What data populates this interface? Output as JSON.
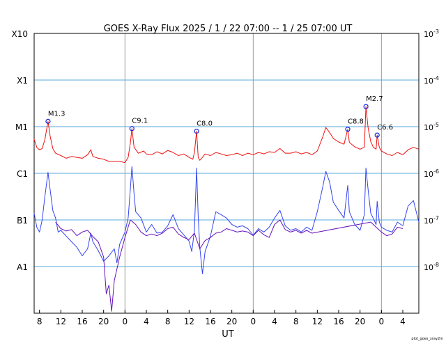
{
  "chart_data": {
    "type": "line",
    "title": "GOES X-Ray Flux   2025  /  1 / 22   07:00 --  1 / 25   07:00   UT",
    "xlabel": "UT",
    "footer": "plot_goes_xray2m",
    "x_range_hours": [
      0,
      72
    ],
    "x_tick_labels": [
      "8",
      "12",
      "16",
      "20",
      "0",
      "4",
      "8",
      "12",
      "16",
      "20",
      "0",
      "4",
      "8",
      "12",
      "16",
      "20",
      "0",
      "4"
    ],
    "x_tick_hours": [
      1,
      5,
      9,
      13,
      17,
      21,
      25,
      29,
      33,
      37,
      41,
      45,
      49,
      53,
      57,
      61,
      65,
      69
    ],
    "day_boundaries_hours": [
      17,
      41,
      65
    ],
    "y_scale": "log",
    "y_range": [
      1e-09,
      0.001
    ],
    "y_left_labels": [
      {
        "label": "X10",
        "value": 0.001
      },
      {
        "label": "X1",
        "value": 0.0001
      },
      {
        "label": "M1",
        "value": 1e-05
      },
      {
        "label": "C1",
        "value": 1e-06
      },
      {
        "label": "B1",
        "value": 1e-07
      },
      {
        "label": "A1",
        "value": 1e-08
      }
    ],
    "y_right_labels": [
      {
        "base": "10",
        "exp": "-3",
        "value": 0.001
      },
      {
        "base": "10",
        "exp": "-4",
        "value": 0.0001
      },
      {
        "base": "10",
        "exp": "-5",
        "value": 1e-05
      },
      {
        "base": "10",
        "exp": "-6",
        "value": 1e-06
      },
      {
        "base": "10",
        "exp": "-7",
        "value": 1e-07
      },
      {
        "base": "10",
        "exp": "-8",
        "value": 1e-08
      }
    ],
    "flares": [
      {
        "label": "M1.3",
        "hour": 2.6,
        "flux": 1.3e-05
      },
      {
        "label": "C9.1",
        "hour": 18.3,
        "flux": 9.1e-06
      },
      {
        "label": "C8.0",
        "hour": 30.4,
        "flux": 8e-06
      },
      {
        "label": "C8.8",
        "hour": 58.7,
        "flux": 8.8e-06
      },
      {
        "label": "M2.7",
        "hour": 62.1,
        "flux": 2.7e-05
      },
      {
        "label": "C6.6",
        "hour": 64.2,
        "flux": 6.6e-06
      }
    ],
    "series": [
      {
        "color": "#ee1111",
        "points": [
          [
            0,
            5.4e-06
          ],
          [
            0.5,
            3.6e-06
          ],
          [
            1,
            3.2e-06
          ],
          [
            1.5,
            3.4e-06
          ],
          [
            2,
            5.2e-06
          ],
          [
            2.6,
            1.3e-05
          ],
          [
            3,
            6.2e-06
          ],
          [
            3.5,
            3.4e-06
          ],
          [
            4,
            2.7e-06
          ],
          [
            5,
            2.4e-06
          ],
          [
            6,
            2.1e-06
          ],
          [
            7,
            2.3e-06
          ],
          [
            8,
            2.2e-06
          ],
          [
            9,
            2.1e-06
          ],
          [
            10,
            2.5e-06
          ],
          [
            10.6,
            3.2e-06
          ],
          [
            11,
            2.3e-06
          ],
          [
            12,
            2.1e-06
          ],
          [
            13,
            2e-06
          ],
          [
            14,
            1.8e-06
          ],
          [
            15,
            1.8e-06
          ],
          [
            16,
            1.8e-06
          ],
          [
            17,
            1.7e-06
          ],
          [
            17.6,
            2.2e-06
          ],
          [
            18,
            4.4e-06
          ],
          [
            18.3,
            9.1e-06
          ],
          [
            18.7,
            3.6e-06
          ],
          [
            19.5,
            2.7e-06
          ],
          [
            20.5,
            3e-06
          ],
          [
            21,
            2.6e-06
          ],
          [
            22,
            2.5e-06
          ],
          [
            23,
            2.9e-06
          ],
          [
            24,
            2.6e-06
          ],
          [
            25,
            3.1e-06
          ],
          [
            26,
            2.8e-06
          ],
          [
            27,
            2.4e-06
          ],
          [
            28,
            2.6e-06
          ],
          [
            29,
            2.2e-06
          ],
          [
            29.7,
            2e-06
          ],
          [
            30,
            2.8e-06
          ],
          [
            30.4,
            8e-06
          ],
          [
            30.7,
            2.2e-06
          ],
          [
            31,
            1.9e-06
          ],
          [
            31.5,
            2.2e-06
          ],
          [
            32,
            2.6e-06
          ],
          [
            33,
            2.4e-06
          ],
          [
            34,
            2.8e-06
          ],
          [
            35,
            2.6e-06
          ],
          [
            36,
            2.4e-06
          ],
          [
            37,
            2.5e-06
          ],
          [
            38,
            2.7e-06
          ],
          [
            39,
            2.4e-06
          ],
          [
            40,
            2.7e-06
          ],
          [
            41,
            2.5e-06
          ],
          [
            42,
            2.8e-06
          ],
          [
            43,
            2.6e-06
          ],
          [
            44,
            2.9e-06
          ],
          [
            45,
            2.8e-06
          ],
          [
            46,
            3.4e-06
          ],
          [
            47,
            2.7e-06
          ],
          [
            48,
            2.7e-06
          ],
          [
            49,
            2.9e-06
          ],
          [
            50,
            2.6e-06
          ],
          [
            51,
            2.8e-06
          ],
          [
            52,
            2.5e-06
          ],
          [
            53,
            3e-06
          ],
          [
            54,
            6e-06
          ],
          [
            54.6,
            9.6e-06
          ],
          [
            55.3,
            7.5e-06
          ],
          [
            56,
            5.6e-06
          ],
          [
            57,
            4.7e-06
          ],
          [
            58,
            4.2e-06
          ],
          [
            58.7,
            8.8e-06
          ],
          [
            59,
            4.6e-06
          ],
          [
            60,
            3.7e-06
          ],
          [
            61,
            3.3e-06
          ],
          [
            61.8,
            3.6e-06
          ],
          [
            62.1,
            2.7e-05
          ],
          [
            62.5,
            9.5e-06
          ],
          [
            63,
            4.8e-06
          ],
          [
            63.5,
            3.6e-06
          ],
          [
            64,
            3.3e-06
          ],
          [
            64.2,
            6.6e-06
          ],
          [
            64.6,
            3.6e-06
          ],
          [
            65,
            3e-06
          ],
          [
            66,
            2.6e-06
          ],
          [
            67,
            2.4e-06
          ],
          [
            68,
            2.8e-06
          ],
          [
            69,
            2.5e-06
          ],
          [
            70,
            3.2e-06
          ],
          [
            71,
            3.6e-06
          ],
          [
            72,
            3.3e-06
          ]
        ]
      },
      {
        "color": "#3344ee",
        "points": [
          [
            0,
            1.4e-07
          ],
          [
            0.5,
            7e-08
          ],
          [
            1,
            5.5e-08
          ],
          [
            1.5,
            1e-07
          ],
          [
            2,
            3.1e-07
          ],
          [
            2.6,
            1.05e-06
          ],
          [
            3,
            4.4e-07
          ],
          [
            3.5,
            1.6e-07
          ],
          [
            4,
            1.1e-07
          ],
          [
            4.5,
            5.5e-08
          ],
          [
            5,
            6e-08
          ],
          [
            6,
            4.5e-08
          ],
          [
            7,
            3.4e-08
          ],
          [
            8,
            2.6e-08
          ],
          [
            9,
            1.7e-08
          ],
          [
            10,
            2.4e-08
          ],
          [
            10.6,
            5.2e-08
          ],
          [
            11,
            3.4e-08
          ],
          [
            12,
            2.2e-08
          ],
          [
            13,
            1.3e-08
          ],
          [
            14,
            1.7e-08
          ],
          [
            15,
            2.4e-08
          ],
          [
            15.5,
            1.2e-08
          ],
          [
            16,
            3e-08
          ],
          [
            17,
            5.5e-08
          ],
          [
            17.6,
            1.1e-07
          ],
          [
            18,
            4.5e-07
          ],
          [
            18.3,
            1.4e-06
          ],
          [
            18.7,
            3.6e-07
          ],
          [
            19,
            1.5e-07
          ],
          [
            20,
            1.1e-07
          ],
          [
            21,
            5.5e-08
          ],
          [
            22,
            8e-08
          ],
          [
            23,
            5.2e-08
          ],
          [
            24,
            5.5e-08
          ],
          [
            25,
            7.5e-08
          ],
          [
            26,
            1.3e-07
          ],
          [
            27,
            6.5e-08
          ],
          [
            28,
            4.8e-08
          ],
          [
            29,
            3.5e-08
          ],
          [
            29.5,
            2.1e-08
          ],
          [
            30,
            6e-08
          ],
          [
            30.4,
            1.3e-06
          ],
          [
            30.7,
            1.2e-07
          ],
          [
            31,
            2.6e-08
          ],
          [
            31.5,
            7e-09
          ],
          [
            32,
            2.1e-08
          ],
          [
            33,
            4.5e-08
          ],
          [
            34,
            1.5e-07
          ],
          [
            35,
            1.3e-07
          ],
          [
            36,
            1.1e-07
          ],
          [
            37,
            8e-08
          ],
          [
            38,
            7e-08
          ],
          [
            39,
            7.5e-08
          ],
          [
            40,
            6.5e-08
          ],
          [
            41,
            4.7e-08
          ],
          [
            42,
            6.5e-08
          ],
          [
            43,
            5.5e-08
          ],
          [
            44,
            7e-08
          ],
          [
            45,
            1.1e-07
          ],
          [
            46,
            1.6e-07
          ],
          [
            47,
            7.5e-08
          ],
          [
            48,
            6e-08
          ],
          [
            49,
            6.5e-08
          ],
          [
            50,
            5.5e-08
          ],
          [
            51,
            7e-08
          ],
          [
            52,
            6e-08
          ],
          [
            53,
            1.5e-07
          ],
          [
            54,
            5e-07
          ],
          [
            54.6,
            1.1e-06
          ],
          [
            55.3,
            6.5e-07
          ],
          [
            56,
            2.4e-07
          ],
          [
            57,
            1.6e-07
          ],
          [
            58,
            1.1e-07
          ],
          [
            58.7,
            5.5e-07
          ],
          [
            59,
            1.5e-07
          ],
          [
            60,
            8e-08
          ],
          [
            61,
            6e-08
          ],
          [
            61.8,
            1.3e-07
          ],
          [
            62.1,
            1.3e-06
          ],
          [
            62.5,
            4.5e-07
          ],
          [
            63,
            1.4e-07
          ],
          [
            64,
            8e-08
          ],
          [
            64.2,
            2.5e-07
          ],
          [
            64.6,
            9e-08
          ],
          [
            65,
            7e-08
          ],
          [
            66,
            6e-08
          ],
          [
            67,
            5.5e-08
          ],
          [
            68,
            9e-08
          ],
          [
            69,
            7.5e-08
          ],
          [
            70,
            2e-07
          ],
          [
            71,
            2.6e-07
          ],
          [
            72,
            9e-08
          ]
        ]
      },
      {
        "color": "#6611bb",
        "points": [
          [
            4,
            9e-08
          ],
          [
            5,
            6.5e-08
          ],
          [
            6,
            5.8e-08
          ],
          [
            7,
            6.2e-08
          ],
          [
            8,
            4.6e-08
          ],
          [
            9,
            5.5e-08
          ],
          [
            10,
            6e-08
          ],
          [
            11,
            4.4e-08
          ],
          [
            12,
            3.4e-08
          ],
          [
            13,
            1.6e-08
          ],
          [
            13.5,
            2.6e-09
          ],
          [
            14,
            4e-09
          ],
          [
            14.5,
            1.1e-09
          ],
          [
            15,
            5e-09
          ],
          [
            16,
            1.6e-08
          ],
          [
            17,
            4.2e-08
          ],
          [
            18,
            1e-07
          ],
          [
            19,
            8e-08
          ],
          [
            20,
            5.5e-08
          ],
          [
            21,
            4.6e-08
          ],
          [
            22,
            5e-08
          ],
          [
            23,
            4.6e-08
          ],
          [
            24,
            5.2e-08
          ],
          [
            25,
            6.5e-08
          ],
          [
            26,
            7e-08
          ],
          [
            27,
            5e-08
          ],
          [
            28,
            4.2e-08
          ],
          [
            29,
            3.8e-08
          ],
          [
            30,
            5.2e-08
          ],
          [
            31,
            2.4e-08
          ],
          [
            32,
            3.6e-08
          ],
          [
            33,
            4.2e-08
          ],
          [
            34,
            5.2e-08
          ],
          [
            35,
            5.5e-08
          ],
          [
            36,
            6.5e-08
          ],
          [
            37,
            6e-08
          ],
          [
            38,
            5.5e-08
          ],
          [
            39,
            5.8e-08
          ],
          [
            40,
            5.5e-08
          ],
          [
            41,
            4.6e-08
          ],
          [
            42,
            6e-08
          ],
          [
            43,
            4.8e-08
          ],
          [
            44,
            4.2e-08
          ],
          [
            45,
            8e-08
          ],
          [
            46,
            1e-07
          ],
          [
            47,
            6.2e-08
          ],
          [
            48,
            5.5e-08
          ],
          [
            49,
            6e-08
          ],
          [
            50,
            5.2e-08
          ],
          [
            51,
            6e-08
          ],
          [
            52,
            5.2e-08
          ],
          [
            63,
            9e-08
          ],
          [
            64,
            7e-08
          ],
          [
            65,
            5.5e-08
          ],
          [
            66,
            4.6e-08
          ],
          [
            67,
            5e-08
          ],
          [
            68,
            7e-08
          ],
          [
            69,
            6.5e-08
          ]
        ]
      }
    ]
  }
}
